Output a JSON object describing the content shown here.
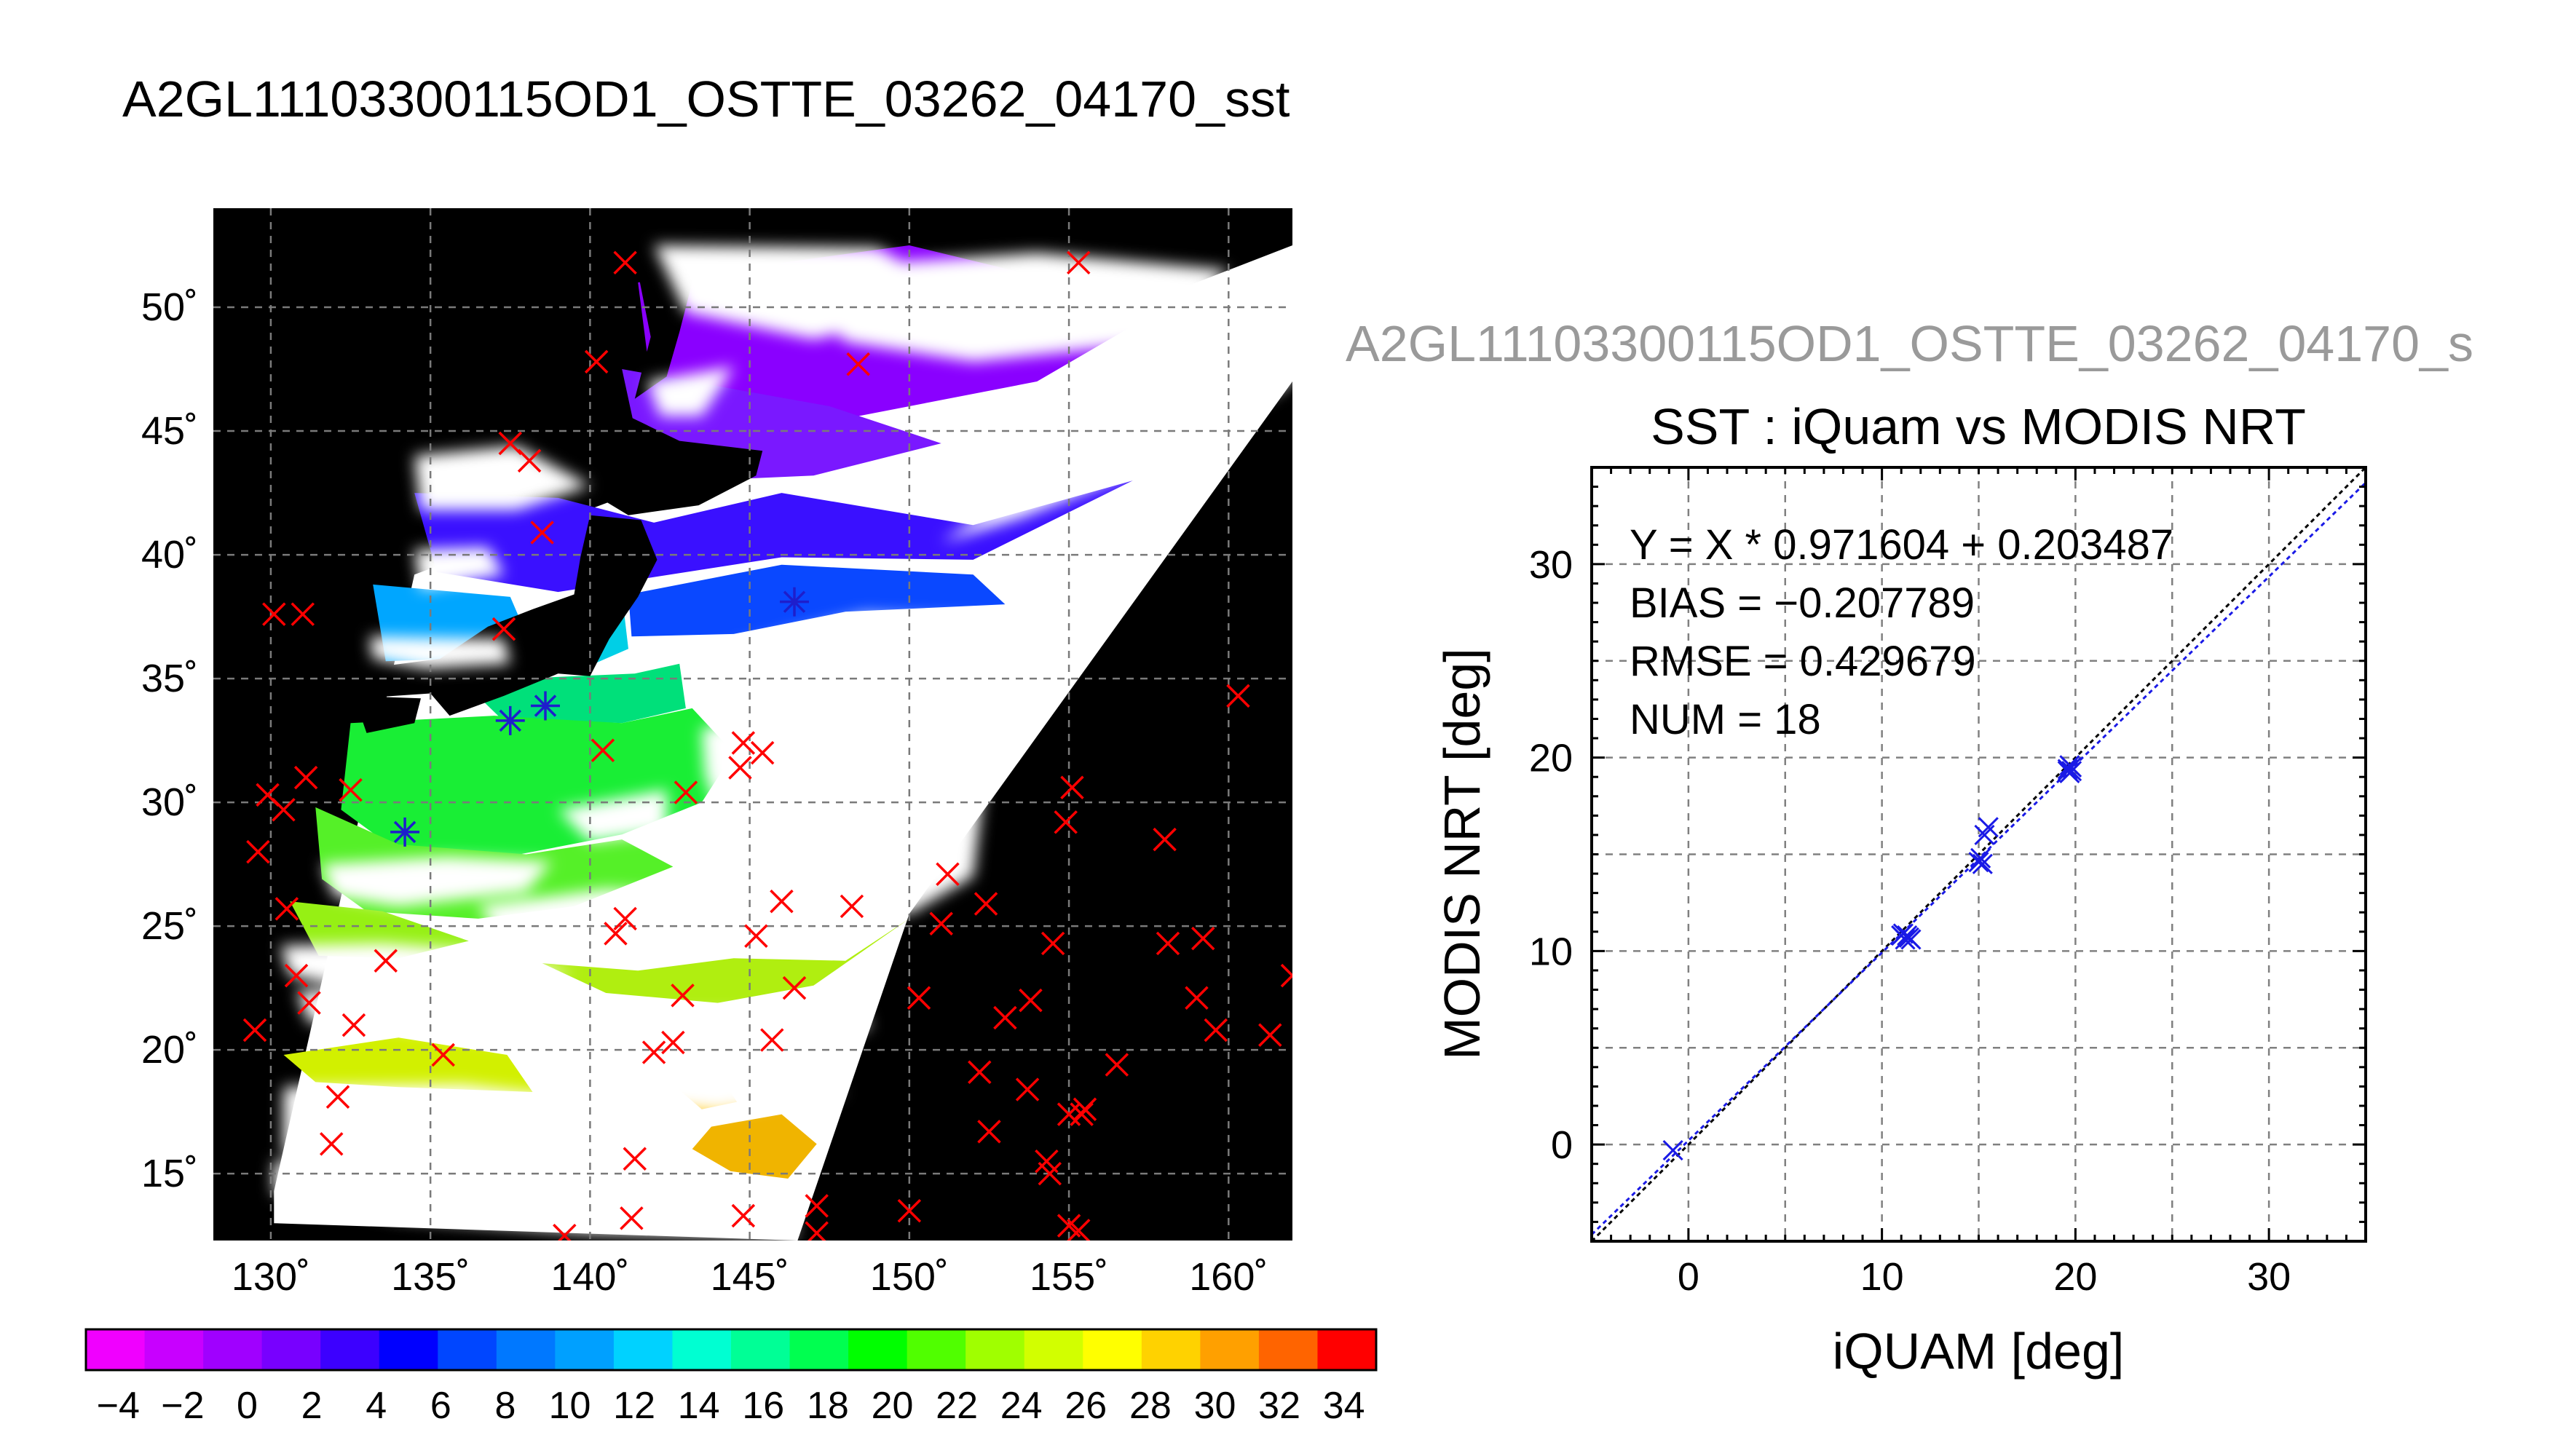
{
  "figure": {
    "main_title": "A2GL11103300115OD1_OSTTE_03262_04170_sst",
    "secondary_title": "A2GL11103300115OD1_OSTTE_03262_04170_s"
  },
  "colors": {
    "match_marker": "#ff0000",
    "buoy_marker": "#1e1ecc",
    "scatter_marker": "#1a1ae6",
    "fit_line": "#1a1ae6",
    "identity_line": "#000000",
    "land_background": "#000000",
    "cloud_mask": "#ffffff"
  },
  "chart_data": [
    {
      "type": "heatmap",
      "title": "A2GL11103300115OD1_OSTTE_03262_04170_sst",
      "xlabel": "",
      "ylabel": "",
      "xlim": [
        128.2,
        162
      ],
      "ylim": [
        12.3,
        54
      ],
      "x_ticks": [
        130,
        135,
        140,
        145,
        150,
        155,
        160
      ],
      "x_tick_labels": [
        "130˚",
        "135˚",
        "140˚",
        "145˚",
        "150˚",
        "155˚",
        "160˚"
      ],
      "y_ticks": [
        15,
        20,
        25,
        30,
        35,
        40,
        45,
        50
      ],
      "y_tick_labels": [
        "15˚",
        "20˚",
        "25˚",
        "30˚",
        "35˚",
        "40˚",
        "45˚",
        "50˚"
      ],
      "grid": true,
      "swath_corners": [
        [
          130.1,
          14.3
        ],
        [
          134.5,
          39.2
        ],
        [
          158,
          50.5
        ],
        [
          162,
          52.5
        ],
        [
          162,
          47
        ],
        [
          150,
          25.5
        ],
        [
          146.5,
          12.3
        ],
        [
          130.1,
          13
        ]
      ],
      "colorbar": {
        "vmin": -5,
        "vmax": 35,
        "tick_labels": [
          "−4",
          "−2",
          "0",
          "2",
          "4",
          "6",
          "8",
          "10",
          "12",
          "14",
          "16",
          "18",
          "20",
          "22",
          "24",
          "26",
          "28",
          "30",
          "32",
          "34"
        ],
        "tick_values": [
          -4,
          -2,
          0,
          2,
          4,
          6,
          8,
          10,
          12,
          14,
          16,
          18,
          20,
          22,
          24,
          26,
          28,
          30,
          32,
          34
        ],
        "colors": [
          "#f000ff",
          "#c800ff",
          "#a000ff",
          "#7800ff",
          "#3c00ff",
          "#0000ff",
          "#0046ff",
          "#0078ff",
          "#00a0ff",
          "#00d2ff",
          "#00ffd2",
          "#00ff96",
          "#00ff50",
          "#00ff00",
          "#50ff00",
          "#a0ff00",
          "#d2ff00",
          "#ffff00",
          "#ffd200",
          "#ffa000",
          "#ff6400",
          "#ff0000"
        ]
      },
      "match_points": [
        [
          130.1,
          37.6
        ],
        [
          131.0,
          37.6
        ],
        [
          129.9,
          30.3
        ],
        [
          130.4,
          29.7
        ],
        [
          131.1,
          31.0
        ],
        [
          130.5,
          25.7
        ],
        [
          130.8,
          23.0
        ],
        [
          131.2,
          21.9
        ],
        [
          129.5,
          20.8
        ],
        [
          132.5,
          30.5
        ],
        [
          133.6,
          23.6
        ],
        [
          132.6,
          21.0
        ],
        [
          132.1,
          18.1
        ],
        [
          131.9,
          16.2
        ],
        [
          135.4,
          19.8
        ],
        [
          137.5,
          44.5
        ],
        [
          138.1,
          43.8
        ],
        [
          138.5,
          40.9
        ],
        [
          140.2,
          47.8
        ],
        [
          141.1,
          51.8
        ],
        [
          137.3,
          37.0
        ],
        [
          140.4,
          32.1
        ],
        [
          143.0,
          30.4
        ],
        [
          144.8,
          32.4
        ],
        [
          145.4,
          32.0
        ],
        [
          144.7,
          31.4
        ],
        [
          141.1,
          25.3
        ],
        [
          140.8,
          24.7
        ],
        [
          142.9,
          22.2
        ],
        [
          142.6,
          20.3
        ],
        [
          142.0,
          19.9
        ],
        [
          141.4,
          15.6
        ],
        [
          141.3,
          13.2
        ],
        [
          139.2,
          12.5
        ],
        [
          144.8,
          13.3
        ],
        [
          145.2,
          24.6
        ],
        [
          146.0,
          26.0
        ],
        [
          146.4,
          22.5
        ],
        [
          145.7,
          20.4
        ],
        [
          148.2,
          25.8
        ],
        [
          148.4,
          47.7
        ],
        [
          150.0,
          13.5
        ],
        [
          147.1,
          13.7
        ],
        [
          147.1,
          12.6
        ],
        [
          150.3,
          22.1
        ],
        [
          151.0,
          25.1
        ],
        [
          151.2,
          27.1
        ],
        [
          152.2,
          19.1
        ],
        [
          153.7,
          18.4
        ],
        [
          152.5,
          16.7
        ],
        [
          152.4,
          25.9
        ],
        [
          153.0,
          21.3
        ],
        [
          153.8,
          22.0
        ],
        [
          154.5,
          24.3
        ],
        [
          154.3,
          15.5
        ],
        [
          154.4,
          15.0
        ],
        [
          155.0,
          17.4
        ],
        [
          155.4,
          17.4
        ],
        [
          155.5,
          17.6
        ],
        [
          155.0,
          12.9
        ],
        [
          155.3,
          12.7
        ],
        [
          154.9,
          29.2
        ],
        [
          155.1,
          30.6
        ],
        [
          155.3,
          51.8
        ],
        [
          156.5,
          19.4
        ],
        [
          158.0,
          28.5
        ],
        [
          158.1,
          24.3
        ],
        [
          159.2,
          24.5
        ],
        [
          159.0,
          22.1
        ],
        [
          159.6,
          20.8
        ],
        [
          160.3,
          34.3
        ],
        [
          161.3,
          20.6
        ],
        [
          162.0,
          23.0
        ],
        [
          129.6,
          28.0
        ]
      ],
      "buoy_points": [
        [
          134.2,
          28.8
        ],
        [
          137.5,
          33.3
        ],
        [
          138.6,
          33.9
        ],
        [
          146.4,
          38.1
        ]
      ]
    },
    {
      "type": "scatter",
      "title": "SST : iQuam vs MODIS NRT",
      "xlabel": "iQUAM [deg]",
      "ylabel": "MODIS NRT [deg]",
      "xlim": [
        -5,
        35
      ],
      "ylim": [
        -5,
        35
      ],
      "x_ticks": [
        0,
        10,
        20,
        30
      ],
      "x_tick_labels": [
        "0",
        "10",
        "20",
        "30"
      ],
      "y_ticks": [
        0,
        10,
        20,
        30
      ],
      "y_tick_labels": [
        "0",
        "10",
        "20",
        "30"
      ],
      "grid": true,
      "stats": [
        "Y = X * 0.971604 + 0.203487",
        "BIAS = −0.207789",
        "RMSE = 0.429679",
        "NUM = 18"
      ],
      "fit": {
        "slope": 0.971604,
        "intercept": 0.203487
      },
      "points": [
        [
          -0.8,
          -0.3
        ],
        [
          11.0,
          10.8
        ],
        [
          11.2,
          10.6
        ],
        [
          11.4,
          10.7
        ],
        [
          11.1,
          10.9
        ],
        [
          11.3,
          10.8
        ],
        [
          11.5,
          10.6
        ],
        [
          15.0,
          14.6
        ],
        [
          15.1,
          14.8
        ],
        [
          15.2,
          14.5
        ],
        [
          15.3,
          16.0
        ],
        [
          15.5,
          16.4
        ],
        [
          19.6,
          19.4
        ],
        [
          19.7,
          19.2
        ],
        [
          19.8,
          19.5
        ],
        [
          19.6,
          19.3
        ],
        [
          19.7,
          19.6
        ],
        [
          19.8,
          19.3
        ]
      ]
    }
  ]
}
